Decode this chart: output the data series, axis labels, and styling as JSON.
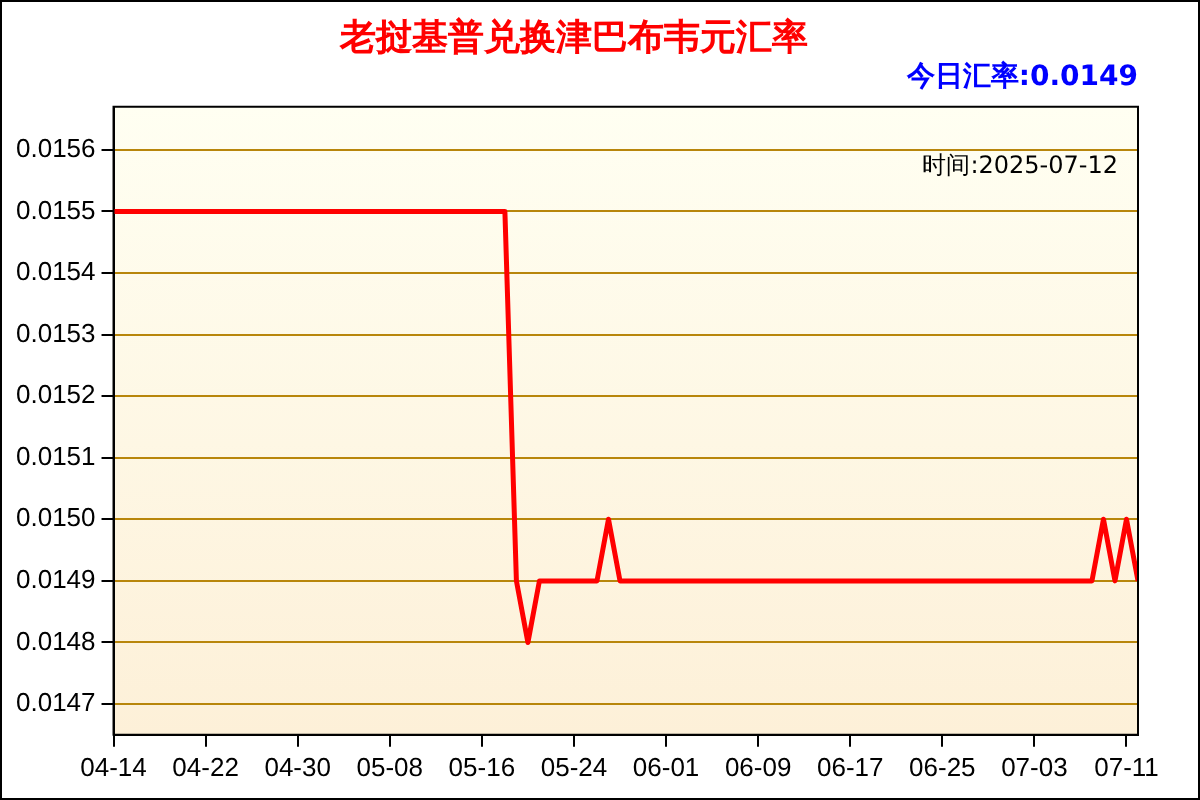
{
  "chart_data": {
    "type": "line",
    "title": "老挝基普兑换津巴布韦元汇率",
    "subtitle": "今日汇率:0.0149",
    "annotations": [
      "时间:2025-07-12"
    ],
    "x": [
      "2025-04-14",
      "2025-05-18",
      "2025-05-19",
      "2025-05-20",
      "2025-05-21",
      "2025-05-26",
      "2025-05-27",
      "2025-05-28",
      "2025-07-08",
      "2025-07-09",
      "2025-07-10",
      "2025-07-11",
      "2025-07-12"
    ],
    "series": [
      {
        "color": "#ff0000",
        "values": [
          0.0155,
          0.0155,
          0.0149,
          0.0148,
          0.0149,
          0.0149,
          0.015,
          0.0149,
          0.0149,
          0.015,
          0.0149,
          0.015,
          0.0149
        ]
      }
    ],
    "xlim": [
      "2025-04-14",
      "2025-07-12"
    ],
    "xticks": [
      {
        "value": "2025-04-14",
        "label": "04-14"
      },
      {
        "value": "2025-04-22",
        "label": "04-22"
      },
      {
        "value": "2025-04-30",
        "label": "04-30"
      },
      {
        "value": "2025-05-08",
        "label": "05-08"
      },
      {
        "value": "2025-05-16",
        "label": "05-16"
      },
      {
        "value": "2025-05-24",
        "label": "05-24"
      },
      {
        "value": "2025-06-01",
        "label": "06-01"
      },
      {
        "value": "2025-06-09",
        "label": "06-09"
      },
      {
        "value": "2025-06-17",
        "label": "06-17"
      },
      {
        "value": "2025-06-25",
        "label": "06-25"
      },
      {
        "value": "2025-07-03",
        "label": "07-03"
      },
      {
        "value": "2025-07-11",
        "label": "07-11"
      }
    ],
    "ylim": [
      0.01465,
      0.01567
    ],
    "yticks": [
      0.0147,
      0.0148,
      0.0149,
      {
        "value": 0.015,
        "label": "0.0150"
      },
      0.0151,
      0.0152,
      0.0153,
      0.0154,
      0.0155,
      0.0156
    ],
    "grid": "y",
    "legend": false,
    "marker": "none",
    "line_style": "solid"
  }
}
